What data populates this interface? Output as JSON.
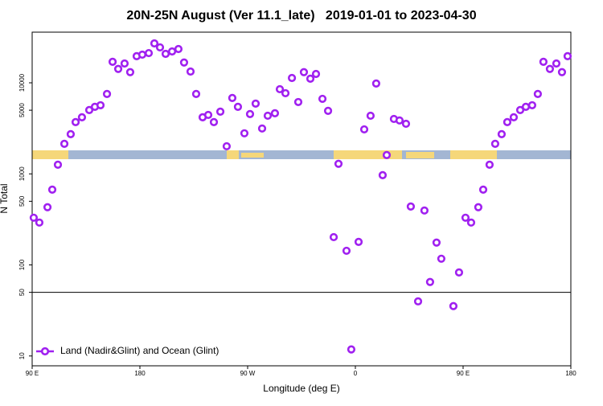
{
  "chart_data": {
    "type": "scatter",
    "title": "20N-25N August (Ver 11.1_late)   2019-01-01 to 2023-04-30",
    "xlabel": "Longitude (deg E)",
    "ylabel": "N Total",
    "xlim": [
      90,
      540
    ],
    "xticks": [
      {
        "value": 90,
        "label": "90 E"
      },
      180,
      {
        "value": 270,
        "label": "90 W"
      },
      {
        "value": 360,
        "label": "0"
      },
      {
        "value": 450,
        "label": "90 E"
      },
      {
        "value": 540,
        "label": "180"
      }
    ],
    "ylim": [
      7.8,
      36000
    ],
    "log_y": true,
    "yticks": [
      10,
      50,
      100,
      500,
      1000,
      5000,
      10000
    ],
    "reference_line": 50,
    "legend": "bottom-left",
    "series": [
      {
        "name": "Land (Nadir&Glint) and Ocean (Glint)",
        "color": "#a020f0",
        "x": [
          91.3,
          96.0,
          102.8,
          106.8,
          111.5,
          116.9,
          122.2,
          126.3,
          131.6,
          137.7,
          142.4,
          147.1,
          152.5,
          157.2,
          161.9,
          167.2,
          171.9,
          177.3,
          182.0,
          187.4,
          192.1,
          196.8,
          201.5,
          206.9,
          212.2,
          216.9,
          222.3,
          227.0,
          232.4,
          237.1,
          241.8,
          247.2,
          252.5,
          257.2,
          261.9,
          267.3,
          272.0,
          276.7,
          282.1,
          286.8,
          292.8,
          296.9,
          301.6,
          307.0,
          312.3,
          317.0,
          322.4,
          327.1,
          332.5,
          337.2,
          341.9,
          345.9,
          352.6,
          356.6,
          362.7,
          367.4,
          372.7,
          377.4,
          382.8,
          386.2,
          392.2,
          396.9,
          402.3,
          406.3,
          412.4,
          417.7,
          422.4,
          427.8,
          431.8,
          441.9,
          446.6,
          452.0,
          456.7,
          462.7,
          466.8,
          472.1,
          476.8,
          482.2,
          486.9,
          492.3,
          497.7,
          502.4,
          507.7,
          512.4,
          517.1,
          522.5,
          527.9,
          532.6,
          537.3
        ],
        "values": [
          330,
          292,
          430,
          671,
          1260,
          2140,
          2730,
          3700,
          4180,
          5020,
          5450,
          5670,
          7540,
          17000,
          14200,
          16300,
          13100,
          19600,
          20400,
          21200,
          27100,
          24500,
          20800,
          22100,
          23500,
          16700,
          13300,
          7540,
          4180,
          4440,
          3700,
          4820,
          2010,
          6810,
          5450,
          2790,
          4540,
          5910,
          3150,
          4350,
          4630,
          8510,
          7690,
          11300,
          6150,
          13100,
          11100,
          12500,
          6670,
          4920,
          202,
          1290,
          143,
          11.8,
          179,
          3080,
          4350,
          9820,
          968,
          1610,
          4010,
          3860,
          3550,
          438,
          39.8,
          396,
          64.9,
          176,
          117,
          35.3,
          82.7,
          330,
          292,
          430,
          671,
          1260,
          2140,
          2730,
          3700,
          4180,
          5020,
          5450,
          5670,
          7540,
          17000,
          14200,
          16300,
          13100,
          19600
        ]
      }
    ]
  }
}
